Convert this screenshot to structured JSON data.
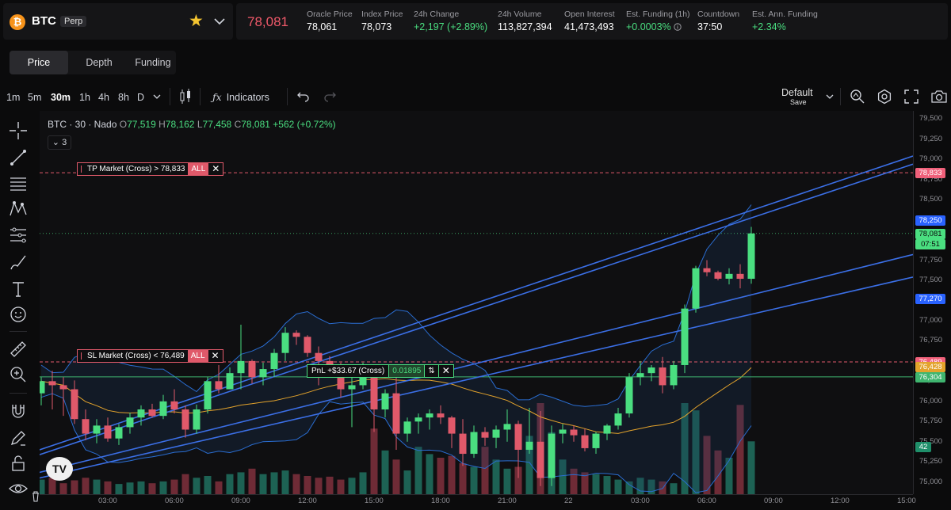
{
  "market": {
    "symbol": "BTC",
    "icon_glyph": "₿",
    "type_badge": "Perp",
    "last_price": "78,081",
    "stats": [
      {
        "label": "Oracle Price",
        "value": "78,061",
        "color": "white"
      },
      {
        "label": "Index Price",
        "value": "78,073",
        "color": "white"
      },
      {
        "label": "24h Change",
        "value": "+2,197 (+2.89%)",
        "color": "green"
      },
      {
        "label": "24h Volume",
        "value": "113,827,394",
        "color": "white"
      },
      {
        "label": "Open Interest",
        "value": "41,473,493",
        "color": "white"
      },
      {
        "label": "Est. Funding (1h)",
        "value": "+0.0003%",
        "color": "green"
      },
      {
        "label": "Countdown",
        "value": "37:50",
        "color": "white"
      },
      {
        "label": "Est. Ann. Funding",
        "value": "+2.34%",
        "color": "green"
      }
    ]
  },
  "view_tabs": [
    "Price",
    "Depth",
    "Funding"
  ],
  "active_view_tab": "Price",
  "toolbar": {
    "intervals": [
      "1m",
      "5m",
      "30m",
      "1h",
      "4h",
      "8h",
      "D"
    ],
    "active_interval": "30m",
    "indicators_label": "Indicators",
    "layout_name": "Default",
    "layout_sub": "Save"
  },
  "legend": {
    "title": "BTC · 30 · Nado",
    "o_key": "O",
    "o": "77,519",
    "h_key": "H",
    "h": "78,162",
    "l_key": "L",
    "l": "77,458",
    "c_key": "C",
    "c": "78,081",
    "change": "+562 (+0.72%)",
    "collapsed_count": "3"
  },
  "orders": {
    "tp": {
      "label": "TP Market (Cross) > 78,833",
      "all": "ALL",
      "close": "✕"
    },
    "sl": {
      "label": "SL Market (Cross) < 76,489",
      "all": "ALL",
      "close": "✕"
    },
    "position": {
      "label": "PnL +$33.67 (Cross)",
      "qty": "0.01895",
      "swap": "⇅",
      "close": "✕"
    }
  },
  "logo_text": "TV",
  "colors": {
    "up": "#4ade80",
    "down": "#e0596a",
    "trendline": "#3b6fe6",
    "accent_blue": "#2962ff",
    "sma": "#e3a32c",
    "bb_line": "#2a6dd1"
  },
  "chart_data": {
    "type": "candlestick",
    "symbol": "BTC",
    "interval": "30",
    "y_range": [
      74850,
      79600
    ],
    "y_ticks": [
      75000,
      75250,
      75500,
      75750,
      76000,
      76250,
      76500,
      76750,
      77000,
      77250,
      77500,
      77750,
      78000,
      78250,
      78500,
      78750,
      79000,
      79250,
      79500
    ],
    "y_tick_labels": [
      "75,000",
      "75,250",
      "75,500",
      "75,750",
      "76,000",
      "76,250",
      "76,500",
      "76,750",
      "77,000",
      "77,250",
      "77,500",
      "77,750",
      "78,000",
      "78,250",
      "78,500",
      "78,750",
      "79,000",
      "79,250",
      "79,500"
    ],
    "x_ticks": [
      "03:00",
      "06:00",
      "09:00",
      "12:00",
      "15:00",
      "18:00",
      "21:00",
      "22",
      "03:00",
      "06:00",
      "09:00",
      "12:00",
      "15:00"
    ],
    "candle_hours_start": 0,
    "candle_hours_step": 0.5,
    "axis_hours_end": 38.5,
    "ohlc": [
      [
        76100,
        76300,
        75950,
        76250
      ],
      [
        76250,
        76380,
        75900,
        76200
      ],
      [
        76200,
        76300,
        75820,
        76150
      ],
      [
        76150,
        76260,
        75720,
        75780
      ],
      [
        75780,
        75900,
        75520,
        75600
      ],
      [
        75600,
        75780,
        75480,
        75700
      ],
      [
        75700,
        75800,
        75500,
        75540
      ],
      [
        75540,
        75720,
        75460,
        75680
      ],
      [
        75680,
        75860,
        75600,
        75800
      ],
      [
        75800,
        75950,
        75700,
        75900
      ],
      [
        75900,
        75970,
        75800,
        75820
      ],
      [
        75820,
        76080,
        75780,
        76000
      ],
      [
        76000,
        76150,
        75850,
        75900
      ],
      [
        75900,
        75950,
        75550,
        75650
      ],
      [
        75650,
        75960,
        75600,
        75900
      ],
      [
        75900,
        76300,
        75850,
        76250
      ],
      [
        76250,
        76450,
        76100,
        76150
      ],
      [
        76150,
        76420,
        76150,
        76350
      ],
      [
        76350,
        76950,
        76150,
        76500
      ],
      [
        76500,
        76520,
        76220,
        76300
      ],
      [
        76300,
        76480,
        76200,
        76400
      ],
      [
        76400,
        76650,
        76300,
        76600
      ],
      [
        76600,
        76920,
        76500,
        76850
      ],
      [
        76850,
        76880,
        76700,
        76800
      ],
      [
        76800,
        76820,
        76550,
        76600
      ],
      [
        76600,
        76680,
        76200,
        76500
      ],
      [
        76500,
        76560,
        76300,
        76450
      ],
      [
        76450,
        76480,
        76050,
        76150
      ],
      [
        76150,
        76320,
        75680,
        76200
      ],
      [
        76200,
        76480,
        76150,
        76400
      ],
      [
        76400,
        76420,
        75620,
        75900
      ],
      [
        75900,
        76150,
        75800,
        76100
      ],
      [
        76100,
        76300,
        75400,
        75600
      ],
      [
        75600,
        75800,
        75500,
        75750
      ],
      [
        75750,
        75850,
        75600,
        75800
      ],
      [
        75800,
        75900,
        75650,
        75850
      ],
      [
        75850,
        75950,
        75720,
        75800
      ],
      [
        75800,
        75820,
        75420,
        75600
      ],
      [
        75600,
        75780,
        75200,
        75350
      ],
      [
        75350,
        75700,
        75300,
        75620
      ],
      [
        75620,
        75680,
        75450,
        75550
      ],
      [
        75550,
        75700,
        75420,
        75650
      ],
      [
        75650,
        75900,
        75500,
        75720
      ],
      [
        75720,
        75760,
        75050,
        75400
      ],
      [
        75400,
        75920,
        75350,
        75500
      ],
      [
        75500,
        75880,
        74950,
        75050
      ],
      [
        75050,
        75700,
        74950,
        75600
      ],
      [
        75600,
        75720,
        75480,
        75650
      ],
      [
        75650,
        75700,
        75500,
        75580
      ],
      [
        75580,
        75660,
        75380,
        75420
      ],
      [
        75420,
        75620,
        75350,
        75600
      ],
      [
        75600,
        75720,
        75520,
        75700
      ],
      [
        75700,
        75920,
        75650,
        75850
      ],
      [
        75850,
        76350,
        75800,
        76300
      ],
      [
        76300,
        76500,
        76200,
        76350
      ],
      [
        76350,
        76450,
        76250,
        76420
      ],
      [
        76420,
        76550,
        76100,
        76200
      ],
      [
        76200,
        76500,
        76150,
        76450
      ],
      [
        76450,
        77200,
        76350,
        77150
      ],
      [
        77150,
        77680,
        77100,
        77650
      ],
      [
        77650,
        77750,
        77550,
        77600
      ],
      [
        77600,
        77620,
        77500,
        77520
      ],
      [
        77520,
        77650,
        77450,
        77580
      ],
      [
        77580,
        77700,
        77400,
        77519
      ],
      [
        77519,
        78162,
        77458,
        78081
      ]
    ],
    "volume": [
      40,
      45,
      30,
      38,
      45,
      40,
      35,
      28,
      32,
      35,
      30,
      35,
      40,
      55,
      45,
      50,
      35,
      55,
      60,
      70,
      55,
      60,
      65,
      55,
      50,
      45,
      48,
      40,
      45,
      60,
      180,
      120,
      95,
      65,
      130,
      110,
      100,
      105,
      85,
      75,
      130,
      95,
      70,
      75,
      160,
      250,
      170,
      95,
      70,
      60,
      55,
      50,
      40,
      35,
      45,
      40,
      35,
      30,
      250,
      230,
      160,
      120,
      100,
      245,
      145
    ],
    "tp_price": 78833,
    "sl_price": 76489,
    "entry_price": 76304,
    "price_labels": [
      {
        "text": "78,833",
        "price": 78833,
        "color": "#f0607a"
      },
      {
        "text": "78,250",
        "price": 78250,
        "color": "#2962ff"
      },
      {
        "text": "78,081",
        "price": 78081,
        "color": "#4ade80"
      },
      {
        "text": "07:51",
        "price": 77955,
        "color": "#4ade80"
      },
      {
        "text": "77,270",
        "price": 77270,
        "color": "#2962ff"
      },
      {
        "text": "76,489",
        "price": 76489,
        "color": "#f0607a"
      },
      {
        "text": "76,428",
        "price": 76428,
        "color": "#e3a32c"
      },
      {
        "text": "76,304",
        "price": 76304,
        "color": "#3fb56f"
      }
    ],
    "volume_label": "42"
  }
}
